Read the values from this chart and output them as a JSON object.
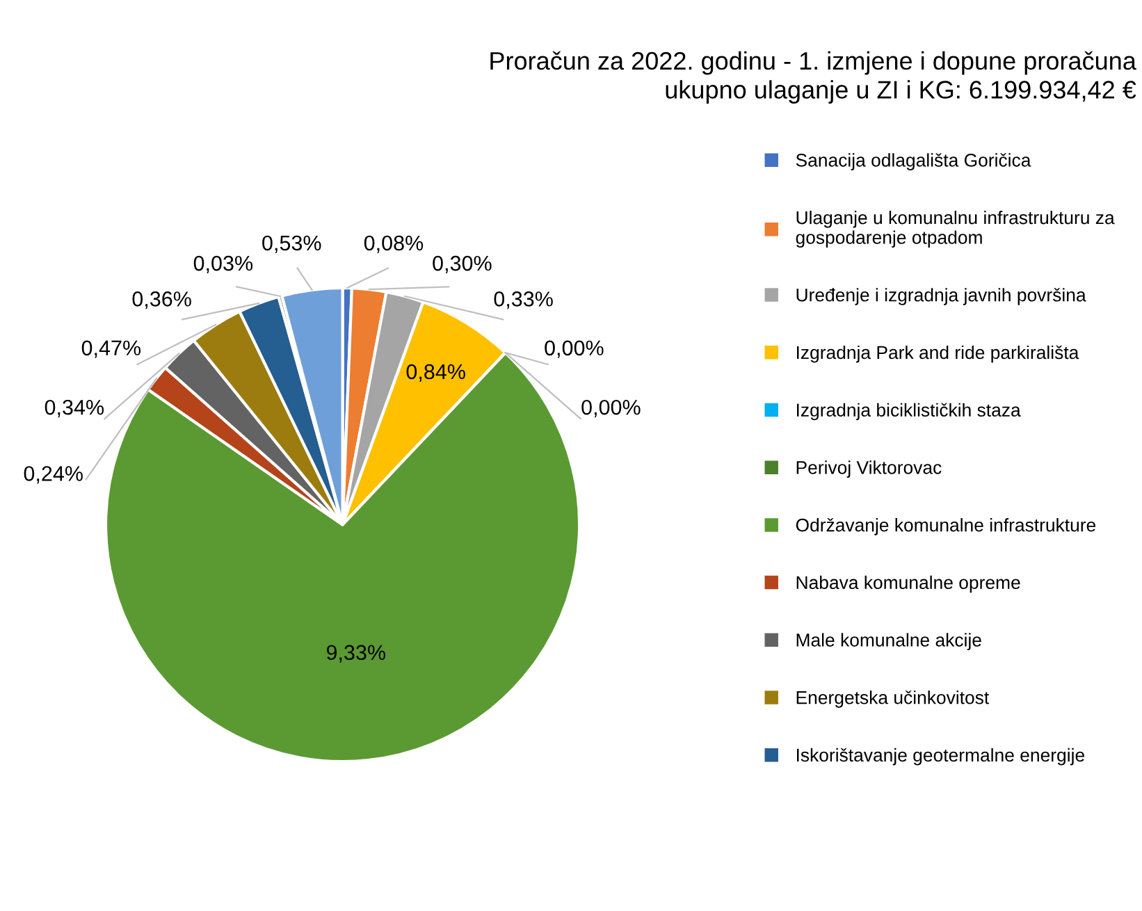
{
  "chart_data": {
    "type": "pie",
    "title": "Proračun za 2022. godinu - 1. izmjene i dopune proračuna\nukupno ulaganje u ZI i KG: 6.199.934,42 €",
    "categories": [
      "Sanacija odlagališta Goričica",
      "Ulaganje u komunalnu infrastrukturu za\ngospodarenje otpadom",
      "Uređenje i izgradnja javnih površina",
      "Izgradnja Park and ride parkirališta",
      "Izgradnja biciklističkih staza",
      "Perivoj Viktorovac",
      "Održavanje komunalne infrastrukture",
      "Nabava komunalne opreme",
      "Male komunalne akcije",
      "Energetska učinkovitost",
      "Iskorištavanje geotermalne energije",
      null,
      null
    ],
    "values": [
      0.08,
      0.3,
      0.33,
      0.84,
      0.0,
      0.0,
      9.33,
      0.24,
      0.34,
      0.47,
      0.36,
      0.03,
      0.53
    ],
    "value_labels": [
      "0,08%",
      "0,30%",
      "0,33%",
      "0,84%",
      "0,00%",
      "0,00%",
      "9,33%",
      "0,24%",
      "0,34%",
      "0,47%",
      "0,36%",
      "0,03%",
      "0,53%"
    ],
    "colors": [
      "#4472c4",
      "#ed7d31",
      "#a5a5a5",
      "#ffc000",
      "#00b0f0",
      "#4e7f2b",
      "#5b9a32",
      "#b5441a",
      "#636363",
      "#9c7c0e",
      "#255e91",
      "#7f6000",
      "#6f9fd8"
    ],
    "legend": "right"
  }
}
